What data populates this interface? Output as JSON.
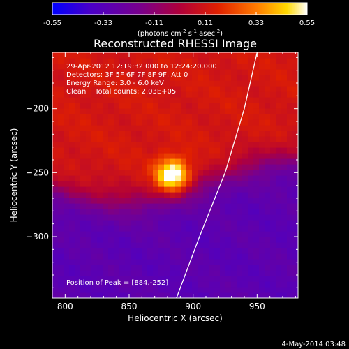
{
  "chart_data": {
    "type": "heatmap",
    "title": "Reconstructed RHESSI Image",
    "xlabel": "Heliocentric X (arcsec)",
    "ylabel": "Heliocentric Y (arcsec)",
    "xlim": [
      790,
      982
    ],
    "ylim": [
      -348,
      -156
    ],
    "x_ticks": [
      800,
      850,
      900,
      950
    ],
    "y_ticks": [
      -200,
      -250,
      -300
    ],
    "colorbar": {
      "min": -0.55,
      "max": 0.55,
      "ticks": [
        "-0.55",
        "-0.33",
        "-0.11",
        "0.11",
        "0.33",
        "0.55"
      ],
      "unit_label": "(photons cm",
      "unit_sup1": "-2",
      "unit_mid": " s",
      "unit_sup2": "-1",
      "unit_mid2": " asec",
      "unit_sup3": "-2",
      "unit_end": ")"
    },
    "annotations": [
      "29-Apr-2012 12:19:32.000 to 12:24:20.000",
      "Detectors: 3F 5F 6F 7F 8F 9F, Att 0",
      "Energy Range: 3.0 - 6.0 keV",
      "Clean    Total counts: 2.03E+05"
    ],
    "peak_text": "Position of Peak = [884,-252]",
    "peak": {
      "x": 884,
      "y": -252,
      "value": 0.55
    },
    "limb_points": [
      [
        887,
        -348
      ],
      [
        905,
        -300
      ],
      [
        925,
        -250
      ],
      [
        940,
        -200
      ],
      [
        950,
        -156
      ]
    ]
  },
  "footer": {
    "timestamp": "4-May-2014 03:48"
  }
}
